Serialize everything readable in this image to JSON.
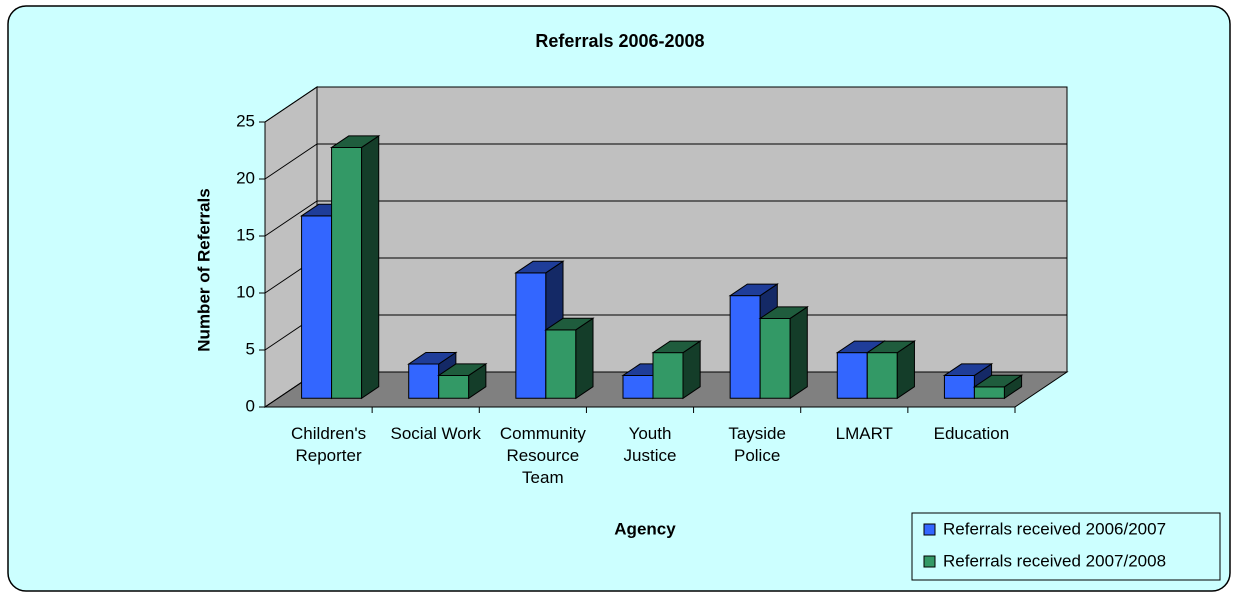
{
  "chart_data": {
    "type": "bar3d",
    "title": "Referrals 2006-2008",
    "x_label": "Agency",
    "y_label": "Number of Referrals",
    "categories": [
      "Children's\nReporter",
      "Social Work",
      "Community\nResource\nTeam",
      "Youth\nJustice",
      "Tayside\nPolice",
      "LMART",
      "Education"
    ],
    "series": [
      {
        "name": "Referrals received 2006/2007",
        "color": "#3366ff",
        "values": [
          16,
          3,
          11,
          2,
          9,
          4,
          2
        ]
      },
      {
        "name": "Referrals received 2007/2008",
        "color": "#339966",
        "values": [
          22,
          2,
          6,
          4,
          7,
          4,
          1
        ]
      }
    ],
    "ylim": [
      0,
      25
    ],
    "yticks": [
      0,
      5,
      10,
      15,
      20,
      25
    ],
    "grid": true,
    "legend": "bottom-right"
  }
}
